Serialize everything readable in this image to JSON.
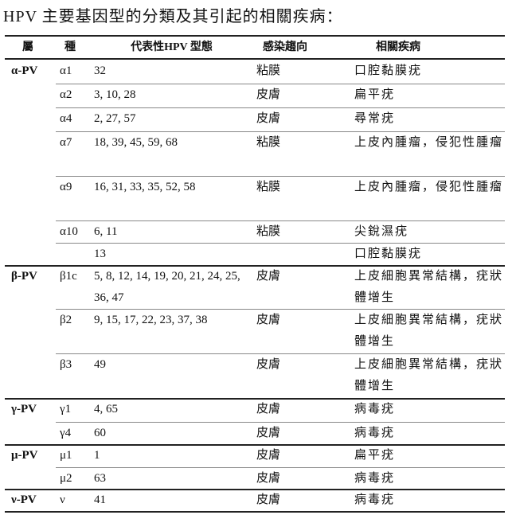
{
  "title": "HPV 主要基因型的分類及其引起的相關疾病：",
  "header": [
    "屬",
    "種",
    "代表性HPV 型態",
    "感染趨向",
    "相關疾病"
  ],
  "groups": [
    {
      "genus": "α-PV",
      "rows": [
        {
          "species": "α1",
          "types": "32",
          "infection": "粘膜",
          "disease": "口腔黏膜疣"
        },
        {
          "species": "α2",
          "types": "3, 10, 28",
          "infection": "皮膚",
          "disease": "扁平疣"
        },
        {
          "species": "α4",
          "types": "2, 27, 57",
          "infection": "皮膚",
          "disease": "尋常疣"
        },
        {
          "species": "α7",
          "types": "18, 39, 45, 59, 68",
          "infection": "粘膜",
          "disease": "上皮內腫瘤，侵犯性腫瘤"
        },
        {
          "species": "α9",
          "types": "16, 31, 33, 35, 52, 58",
          "infection": "粘膜",
          "disease": "上皮內腫瘤，侵犯性腫瘤"
        },
        {
          "species": "α10",
          "types": "6, 11",
          "infection": "粘膜",
          "disease": "尖銳濕疣"
        },
        {
          "species": null,
          "types": "13",
          "infection": null,
          "disease": "口腔黏膜疣"
        }
      ]
    },
    {
      "genus": "β-PV",
      "rows": [
        {
          "species": "β1c",
          "types": "5, 8, 12, 14, 19, 20, 21, 24, 25, 36, 47",
          "infection": "皮膚",
          "disease": "上皮細胞異常結構，疣狀體增生"
        },
        {
          "species": "β2",
          "types": "9, 15, 17, 22, 23, 37, 38",
          "infection": "皮膚",
          "disease": "上皮細胞異常結構，疣狀體增生"
        },
        {
          "species": "β3",
          "types": "49",
          "infection": "皮膚",
          "disease": "上皮細胞異常結構，疣狀體增生"
        }
      ]
    },
    {
      "genus": "γ-PV",
      "rows": [
        {
          "species": "γ1",
          "types": "4, 65",
          "infection": "皮膚",
          "disease": "病毒疣"
        },
        {
          "species": "γ4",
          "types": "60",
          "infection": "皮膚",
          "disease": "病毒疣"
        }
      ]
    },
    {
      "genus": "μ-PV",
      "rows": [
        {
          "species": "μ1",
          "types": "1",
          "infection": "皮膚",
          "disease": "扁平疣"
        },
        {
          "species": "μ2",
          "types": "63",
          "infection": "皮膚",
          "disease": "病毒疣"
        }
      ]
    },
    {
      "genus": "ν-PV",
      "rows": [
        {
          "species": "ν",
          "types": "41",
          "infection": "皮膚",
          "disease": "病毒疣"
        }
      ]
    }
  ]
}
